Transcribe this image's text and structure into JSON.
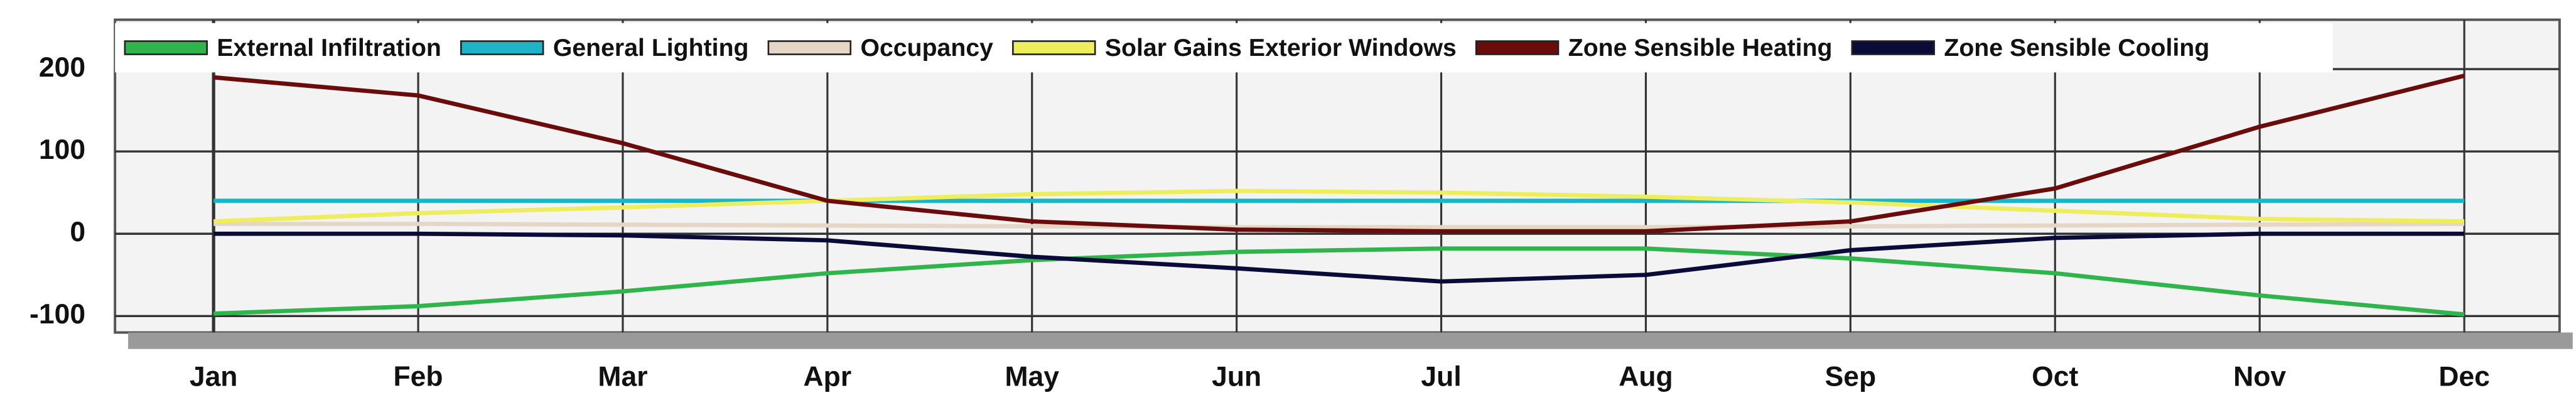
{
  "chart_data": {
    "type": "line",
    "categories": [
      "Jan",
      "Feb",
      "Mar",
      "Apr",
      "May",
      "Jun",
      "Jul",
      "Aug",
      "Sep",
      "Oct",
      "Nov",
      "Dec"
    ],
    "series": [
      {
        "name": "External Infiltration",
        "color": "#2fb54c",
        "values": [
          -97,
          -88,
          -70,
          -48,
          -32,
          -22,
          -18,
          -18,
          -30,
          -48,
          -75,
          -98
        ]
      },
      {
        "name": "General Lighting",
        "color": "#1fb3c9",
        "values": [
          40,
          40,
          40,
          40,
          40,
          40,
          40,
          40,
          40,
          40,
          40,
          40
        ]
      },
      {
        "name": "Occupancy",
        "color": "#e6d6c6",
        "values": [
          12,
          12,
          11,
          10,
          9,
          8,
          8,
          8,
          9,
          10,
          11,
          12
        ]
      },
      {
        "name": "Solar Gains Exterior Windows",
        "color": "#eeee5c",
        "values": [
          15,
          25,
          32,
          40,
          48,
          52,
          50,
          45,
          38,
          28,
          18,
          15
        ]
      },
      {
        "name": "Zone Sensible Heating",
        "color": "#6a0c0c",
        "values": [
          190,
          168,
          110,
          40,
          15,
          5,
          3,
          3,
          15,
          55,
          130,
          192
        ]
      },
      {
        "name": "Zone Sensible Cooling",
        "color": "#0b0b3a",
        "values": [
          0,
          0,
          -2,
          -8,
          -28,
          -42,
          -58,
          -50,
          -20,
          -5,
          0,
          0
        ]
      }
    ],
    "ylim": [
      -120,
      260
    ],
    "yticks": [
      -100,
      0,
      100,
      200
    ],
    "grid": true,
    "legend": "top"
  }
}
